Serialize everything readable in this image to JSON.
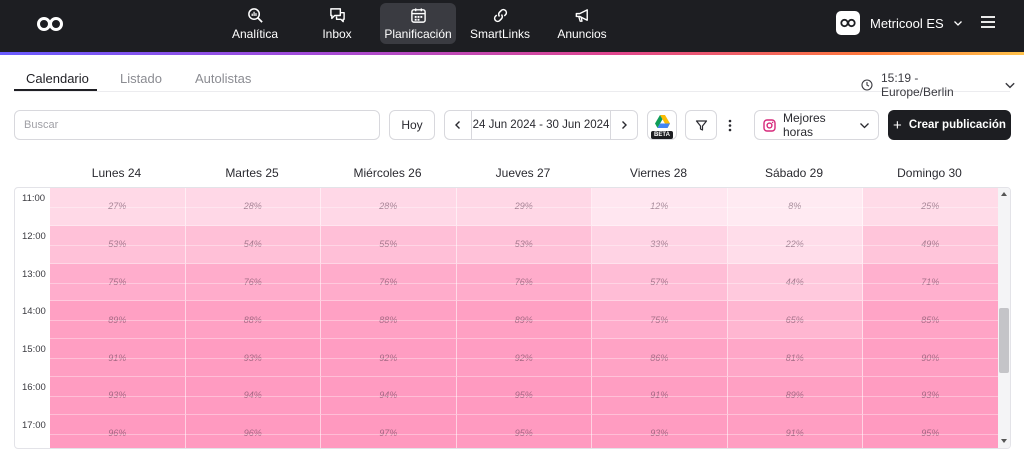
{
  "nav": {
    "items": [
      {
        "label": "Analítica",
        "icon": "chart-magnifier-icon"
      },
      {
        "label": "Inbox",
        "icon": "chat-bubbles-icon"
      },
      {
        "label": "Planificación",
        "icon": "calendar-icon",
        "active": true
      },
      {
        "label": "SmartLinks",
        "icon": "link-icon"
      },
      {
        "label": "Anuncios",
        "icon": "megaphone-icon"
      }
    ],
    "account_name": "Metricool ES",
    "accent_gradient": [
      "#6a5cff",
      "#e0468e",
      "#ffc24a"
    ]
  },
  "tabs": [
    {
      "label": "Calendario",
      "active": true
    },
    {
      "label": "Listado"
    },
    {
      "label": "Autolistas"
    }
  ],
  "timezone": "15:19 - Europe/Berlin",
  "toolbar": {
    "search_placeholder": "Buscar",
    "today_label": "Hoy",
    "date_range": "24 Jun 2024 - 30 Jun 2024",
    "beta_label": "BETA",
    "best_hours_label": "Mejores horas",
    "create_label": "Crear publicación"
  },
  "calendar": {
    "days": [
      "Lunes 24",
      "Martes 25",
      "Miércoles 26",
      "Jueves 27",
      "Viernes 28",
      "Sábado 29",
      "Domingo 30"
    ],
    "hours": [
      "11:00",
      "12:00",
      "13:00",
      "14:00",
      "15:00",
      "16:00",
      "17:00"
    ],
    "heat_color": "#ff8fb9",
    "values": [
      [
        "27%",
        "28%",
        "28%",
        "29%",
        "12%",
        "8%",
        "25%"
      ],
      [
        "53%",
        "54%",
        "55%",
        "53%",
        "33%",
        "22%",
        "49%"
      ],
      [
        "75%",
        "76%",
        "76%",
        "76%",
        "57%",
        "44%",
        "71%"
      ],
      [
        "89%",
        "88%",
        "88%",
        "89%",
        "75%",
        "65%",
        "85%"
      ],
      [
        "91%",
        "93%",
        "92%",
        "92%",
        "86%",
        "81%",
        "90%"
      ],
      [
        "93%",
        "94%",
        "94%",
        "95%",
        "91%",
        "89%",
        "93%"
      ],
      [
        "96%",
        "96%",
        "97%",
        "95%",
        "93%",
        "91%",
        "95%"
      ]
    ]
  }
}
